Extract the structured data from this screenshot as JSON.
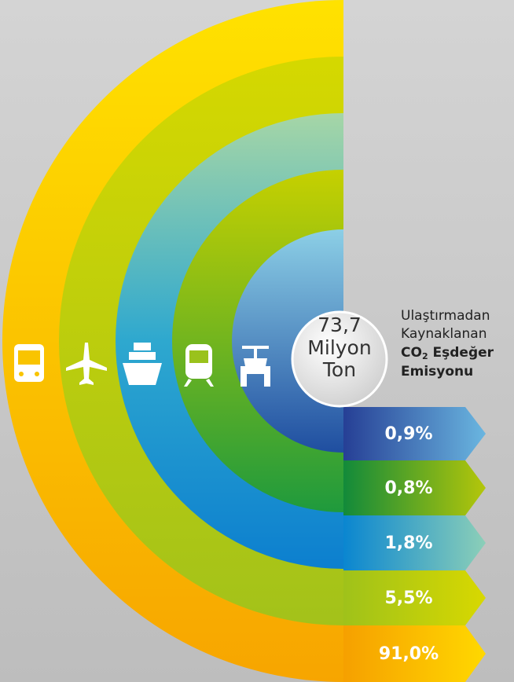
{
  "center": {
    "lines": [
      "73,7",
      "Milyon",
      "Ton"
    ]
  },
  "caption": {
    "line1": "Ulaştırmadan",
    "line2": "Kaynaklanan",
    "co": "CO",
    "sub": "2",
    "rest": " Eşdeğer",
    "line4": "Emisyonu"
  },
  "segments": [
    {
      "label": "0,9%"
    },
    {
      "label": "0,8%"
    },
    {
      "label": "1,8%"
    },
    {
      "label": "5,5%"
    },
    {
      "label": "91,0%"
    }
  ]
}
